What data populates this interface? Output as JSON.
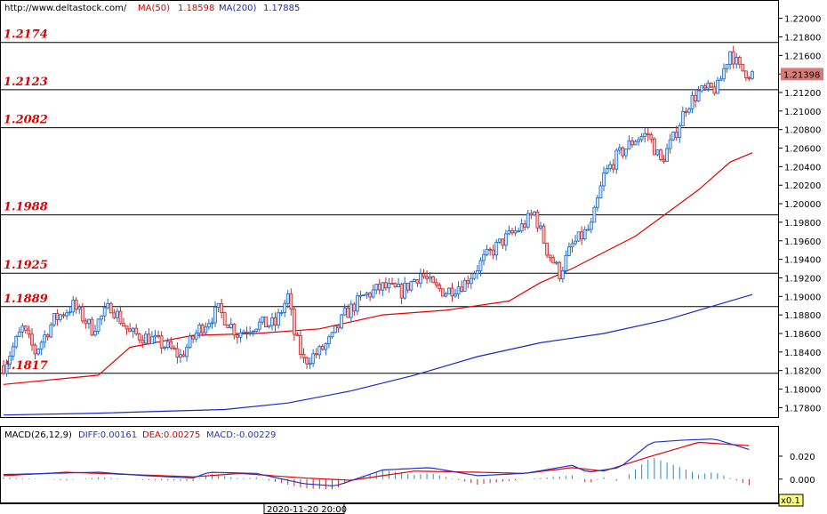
{
  "header": {
    "url": "http://www.deltastock.com/",
    "ma50_label": "MA(50)",
    "ma50_value": "1.18598",
    "ma200_label": "MA(200)",
    "ma200_value": "1.17885"
  },
  "macd_header": {
    "label": "MACD(26,12,9)",
    "diff": "DIFF:0.00161",
    "dea": "DEA:0.00275",
    "macd": "MACD:-0.00229"
  },
  "footer": {
    "date_label": "2020-11-20 20:00",
    "zoom_label": "x0.1"
  },
  "colors": {
    "up": "#1a6ac8",
    "down": "#c62828",
    "ma50": "#e60000",
    "ma200": "#1a28c8",
    "level_text": "#e00000",
    "price_tag_bg": "#d97a7a",
    "diff_line": "#2233cc",
    "dea_line": "#e60000",
    "macd_pos": "#2a8bbf",
    "macd_neg": "#c62828"
  },
  "chart_data": {
    "type": "candlestick",
    "price_axis": {
      "ylim": [
        1.1765,
        1.2215
      ],
      "ticks": [
        "1.22000",
        "1.21800",
        "1.21600",
        "1.21400",
        "1.21200",
        "1.21000",
        "1.20800",
        "1.20600",
        "1.20400",
        "1.20200",
        "1.20000",
        "1.19800",
        "1.19600",
        "1.19400",
        "1.19200",
        "1.19000",
        "1.18800",
        "1.18600",
        "1.18400",
        "1.18200",
        "1.18000",
        "1.17800"
      ]
    },
    "current_price": "1.21398",
    "levels": [
      "1.2174",
      "1.2123",
      "1.2082",
      "1.1988",
      "1.1925",
      "1.1889",
      "1.1817"
    ],
    "macd_axis": {
      "ylim": [
        -0.018,
        0.044
      ],
      "ticks": [
        "0.020",
        "0.000"
      ]
    },
    "anchors": [
      [
        0,
        1.1825
      ],
      [
        6,
        1.1865
      ],
      [
        10,
        1.184
      ],
      [
        16,
        1.1875
      ],
      [
        22,
        1.189
      ],
      [
        28,
        1.1865
      ],
      [
        34,
        1.189
      ],
      [
        40,
        1.186
      ],
      [
        46,
        1.1855
      ],
      [
        52,
        1.1845
      ],
      [
        56,
        1.1835
      ],
      [
        62,
        1.1865
      ],
      [
        68,
        1.1885
      ],
      [
        74,
        1.186
      ],
      [
        80,
        1.187
      ],
      [
        86,
        1.187
      ],
      [
        90,
        1.19
      ],
      [
        92,
        1.186
      ],
      [
        95,
        1.183
      ],
      [
        100,
        1.184
      ],
      [
        104,
        1.1855
      ],
      [
        108,
        1.188
      ],
      [
        114,
        1.19
      ],
      [
        120,
        1.191
      ],
      [
        126,
        1.1905
      ],
      [
        132,
        1.1925
      ],
      [
        136,
        1.191
      ],
      [
        140,
        1.1905
      ],
      [
        146,
        1.1915
      ],
      [
        152,
        1.194
      ],
      [
        158,
        1.196
      ],
      [
        164,
        1.1975
      ],
      [
        168,
        1.199
      ],
      [
        172,
        1.195
      ],
      [
        176,
        1.1925
      ],
      [
        180,
        1.1955
      ],
      [
        186,
        1.1975
      ],
      [
        190,
        1.203
      ],
      [
        194,
        1.205
      ],
      [
        200,
        1.207
      ],
      [
        204,
        1.2075
      ],
      [
        208,
        1.2045
      ],
      [
        212,
        1.207
      ],
      [
        216,
        1.2105
      ],
      [
        220,
        1.212
      ],
      [
        226,
        1.2125
      ],
      [
        230,
        1.2165
      ],
      [
        233,
        1.2145
      ],
      [
        237,
        1.214
      ]
    ],
    "candle_count": 238,
    "ma50": {
      "name": "MA(50)",
      "points": [
        [
          0,
          1.1805
        ],
        [
          30,
          1.1815
        ],
        [
          40,
          1.1845
        ],
        [
          60,
          1.1858
        ],
        [
          80,
          1.186
        ],
        [
          100,
          1.1865
        ],
        [
          120,
          1.188
        ],
        [
          140,
          1.1885
        ],
        [
          160,
          1.1895
        ],
        [
          170,
          1.1915
        ],
        [
          180,
          1.193
        ],
        [
          200,
          1.1965
        ],
        [
          210,
          1.199
        ],
        [
          220,
          1.2015
        ],
        [
          230,
          1.2045
        ],
        [
          237,
          1.2055
        ]
      ]
    },
    "ma200": {
      "name": "MA(200)",
      "points": [
        [
          0,
          1.1772
        ],
        [
          30,
          1.1774
        ],
        [
          50,
          1.1776
        ],
        [
          70,
          1.1778
        ],
        [
          90,
          1.1785
        ],
        [
          110,
          1.1798
        ],
        [
          130,
          1.1815
        ],
        [
          150,
          1.1835
        ],
        [
          170,
          1.185
        ],
        [
          190,
          1.186
        ],
        [
          210,
          1.1875
        ],
        [
          225,
          1.189
        ],
        [
          237,
          1.1902
        ]
      ]
    },
    "diff_anchors": [
      [
        0,
        0.004
      ],
      [
        15,
        0.005
      ],
      [
        30,
        0.006
      ],
      [
        45,
        0.003
      ],
      [
        60,
        0.001
      ],
      [
        65,
        0.006
      ],
      [
        80,
        0.005
      ],
      [
        95,
        -0.004
      ],
      [
        105,
        -0.006
      ],
      [
        120,
        0.008
      ],
      [
        135,
        0.01
      ],
      [
        150,
        0.003
      ],
      [
        165,
        0.005
      ],
      [
        180,
        0.012
      ],
      [
        185,
        0.006
      ],
      [
        195,
        0.01
      ],
      [
        205,
        0.032
      ],
      [
        215,
        0.034
      ],
      [
        225,
        0.035
      ],
      [
        237,
        0.025
      ]
    ],
    "dea_anchors": [
      [
        0,
        0.003
      ],
      [
        20,
        0.006
      ],
      [
        40,
        0.004
      ],
      [
        60,
        0.002
      ],
      [
        75,
        0.005
      ],
      [
        95,
        0.001
      ],
      [
        110,
        -0.001
      ],
      [
        130,
        0.007
      ],
      [
        150,
        0.006
      ],
      [
        165,
        0.005
      ],
      [
        180,
        0.01
      ],
      [
        190,
        0.007
      ],
      [
        205,
        0.02
      ],
      [
        220,
        0.032
      ],
      [
        237,
        0.029
      ]
    ]
  }
}
